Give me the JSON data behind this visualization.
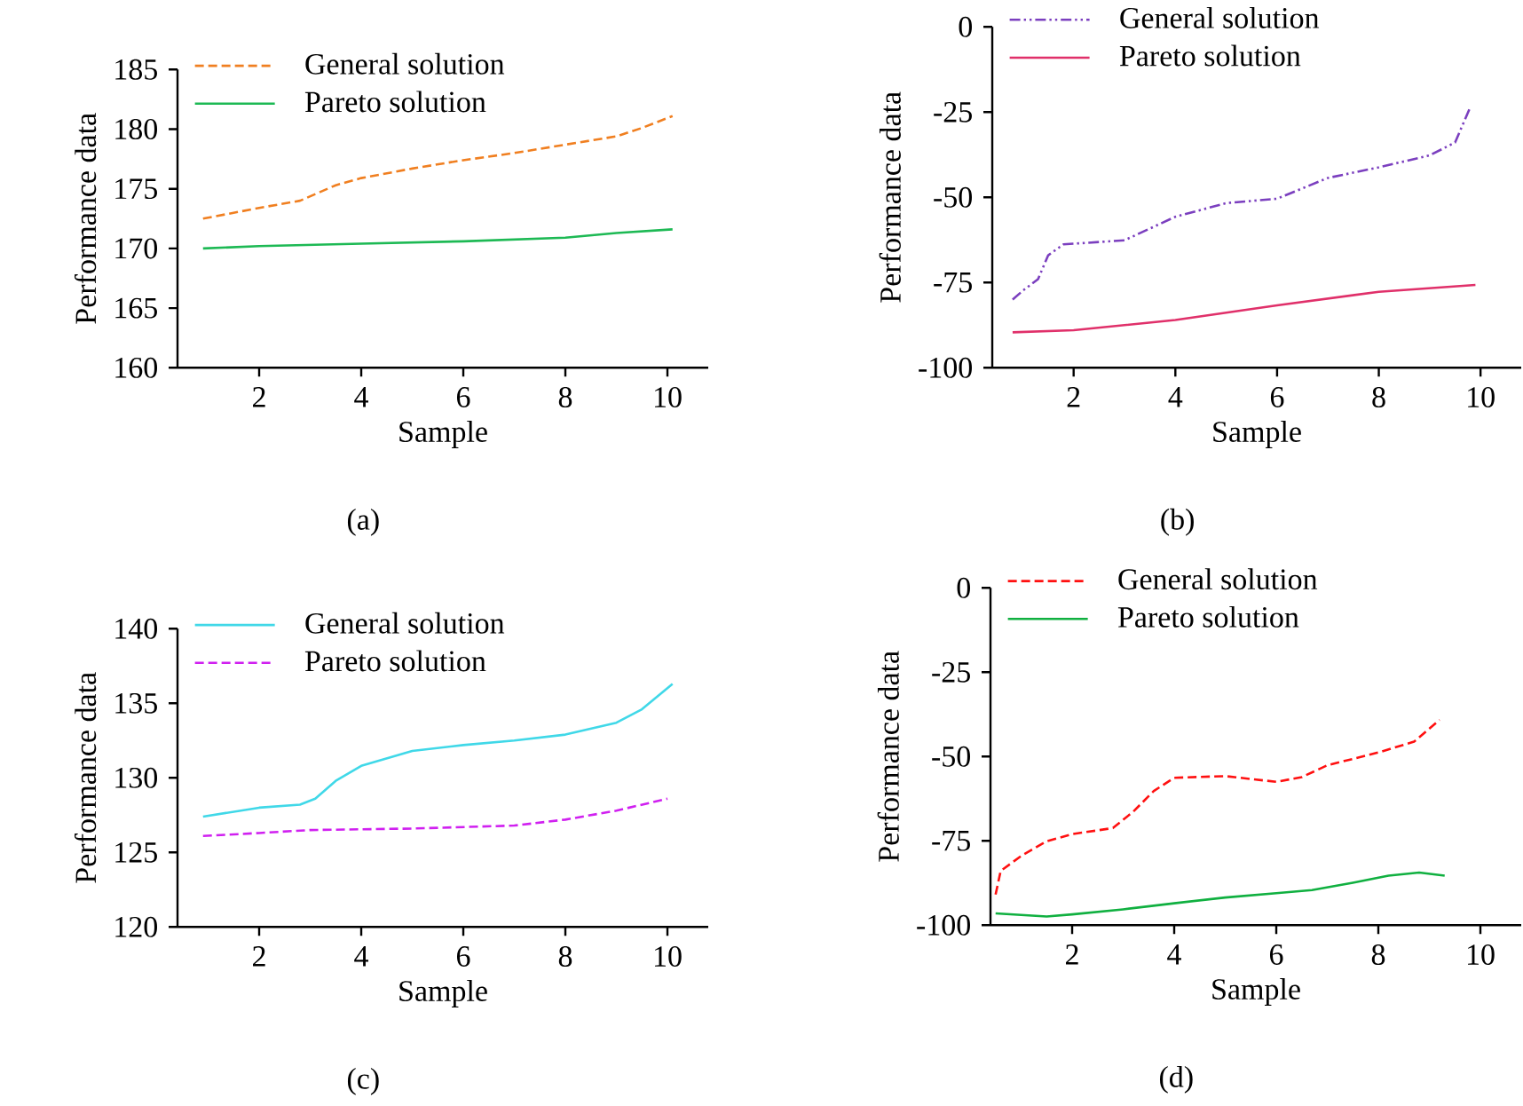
{
  "chart_data": [
    {
      "type": "line",
      "xlabel": "Sample",
      "ylabel": "Performance data",
      "annotations": [
        "(a)"
      ],
      "xlim": [
        0.4,
        10.8
      ],
      "ylim": [
        160,
        185
      ],
      "xticks": [
        2,
        4,
        6,
        8,
        10
      ],
      "yticks": [
        160,
        165,
        170,
        175,
        180,
        185
      ],
      "legend": "top left",
      "marker": "none",
      "series": [
        {
          "name": "General solution",
          "color": "#f07f20",
          "line_style": "dashed",
          "x": [
            0.9,
            2,
            2.8,
            3.5,
            4,
            5,
            6,
            7,
            8,
            9,
            9.5,
            10.1
          ],
          "values": [
            172.5,
            173.4,
            174,
            175.3,
            175.9,
            176.7,
            177.4,
            178,
            178.7,
            179.4,
            180.1,
            181.1
          ]
        },
        {
          "name": "Pareto solution",
          "color": "#1db954",
          "line_style": "solid",
          "x": [
            0.9,
            2,
            4,
            6,
            8,
            9,
            10.1
          ],
          "values": [
            170,
            170.2,
            170.4,
            170.6,
            170.9,
            171.3,
            171.6
          ]
        }
      ]
    },
    {
      "type": "line",
      "xlabel": "Sample",
      "ylabel": "Performance data",
      "annotations": [
        "(b)"
      ],
      "xlim": [
        0.4,
        10.8
      ],
      "ylim": [
        -100,
        0
      ],
      "xticks": [
        2,
        4,
        6,
        8,
        10
      ],
      "yticks": [
        -100,
        -75,
        -50,
        -25,
        0
      ],
      "legend": "top left",
      "marker": "none",
      "series": [
        {
          "name": "General solution",
          "color": "#7b3fbf",
          "line_style": "dashdotdot",
          "x": [
            0.8,
            1.0,
            1.3,
            1.5,
            1.8,
            3,
            4,
            5,
            6,
            7,
            8,
            9,
            9.5,
            9.8
          ],
          "values": [
            -80,
            -77.4,
            -74,
            -67,
            -63.8,
            -62.6,
            -55.7,
            -51.7,
            -50.4,
            -44.3,
            -41.2,
            -37.7,
            -33.9,
            -23.5
          ]
        },
        {
          "name": "Pareto solution",
          "color": "#e0306a",
          "line_style": "solid",
          "x": [
            0.8,
            2,
            4,
            6,
            8,
            9.9
          ],
          "values": [
            -89.6,
            -89,
            -86,
            -81.7,
            -77.7,
            -75.7
          ]
        }
      ]
    },
    {
      "type": "line",
      "xlabel": "Sample",
      "ylabel": "Performance data",
      "annotations": [
        "(c)"
      ],
      "xlim": [
        0.4,
        10.8
      ],
      "ylim": [
        120,
        140
      ],
      "xticks": [
        2,
        4,
        6,
        8,
        10
      ],
      "yticks": [
        120,
        125,
        130,
        135,
        140
      ],
      "legend": "top left",
      "marker": "none",
      "series": [
        {
          "name": "General solution",
          "color": "#40d8e8",
          "line_style": "solid",
          "x": [
            0.9,
            2,
            2.8,
            3.1,
            3.5,
            4,
            5,
            6,
            7,
            8,
            9,
            9.5,
            10.1
          ],
          "values": [
            127.4,
            128,
            128.2,
            128.6,
            129.8,
            130.8,
            131.8,
            132.2,
            132.5,
            132.9,
            133.7,
            134.6,
            136.3
          ]
        },
        {
          "name": "Pareto solution",
          "color": "#d020f0",
          "line_style": "dashed",
          "x": [
            0.9,
            2,
            3,
            5,
            6,
            7,
            8,
            9,
            10
          ],
          "values": [
            126.1,
            126.3,
            126.5,
            126.6,
            126.7,
            126.8,
            127.2,
            127.8,
            128.6
          ]
        }
      ]
    },
    {
      "type": "line",
      "xlabel": "Sample",
      "ylabel": "Performance data",
      "annotations": [
        "(d)"
      ],
      "xlim": [
        0.4,
        10.8
      ],
      "ylim": [
        -100,
        0
      ],
      "xticks": [
        2,
        4,
        6,
        8,
        10
      ],
      "yticks": [
        -100,
        -75,
        -50,
        -25,
        0
      ],
      "legend": "top left",
      "marker": "none",
      "series": [
        {
          "name": "General solution",
          "color": "#ff1010",
          "line_style": "dashed",
          "x": [
            0.5,
            0.6,
            1,
            1.5,
            2,
            2.8,
            3.2,
            3.6,
            4,
            5,
            6,
            6.5,
            7,
            8,
            8.7,
            9.2
          ],
          "values": [
            -90.9,
            -83.9,
            -79.5,
            -75.1,
            -73,
            -71.2,
            -66.3,
            -60.2,
            -56.3,
            -55.8,
            -57.5,
            -56.1,
            -52.6,
            -48.8,
            -45.6,
            -39.1
          ]
        },
        {
          "name": "Pareto solution",
          "color": "#10b040",
          "line_style": "solid",
          "x": [
            0.5,
            1.5,
            2,
            3,
            4,
            5,
            6,
            6.7,
            7.5,
            8.2,
            8.8,
            9.3
          ],
          "values": [
            -96.5,
            -97.4,
            -96.8,
            -95.3,
            -93.5,
            -91.8,
            -90.5,
            -89.6,
            -87.4,
            -85.3,
            -84.4,
            -85.3
          ]
        }
      ]
    }
  ]
}
